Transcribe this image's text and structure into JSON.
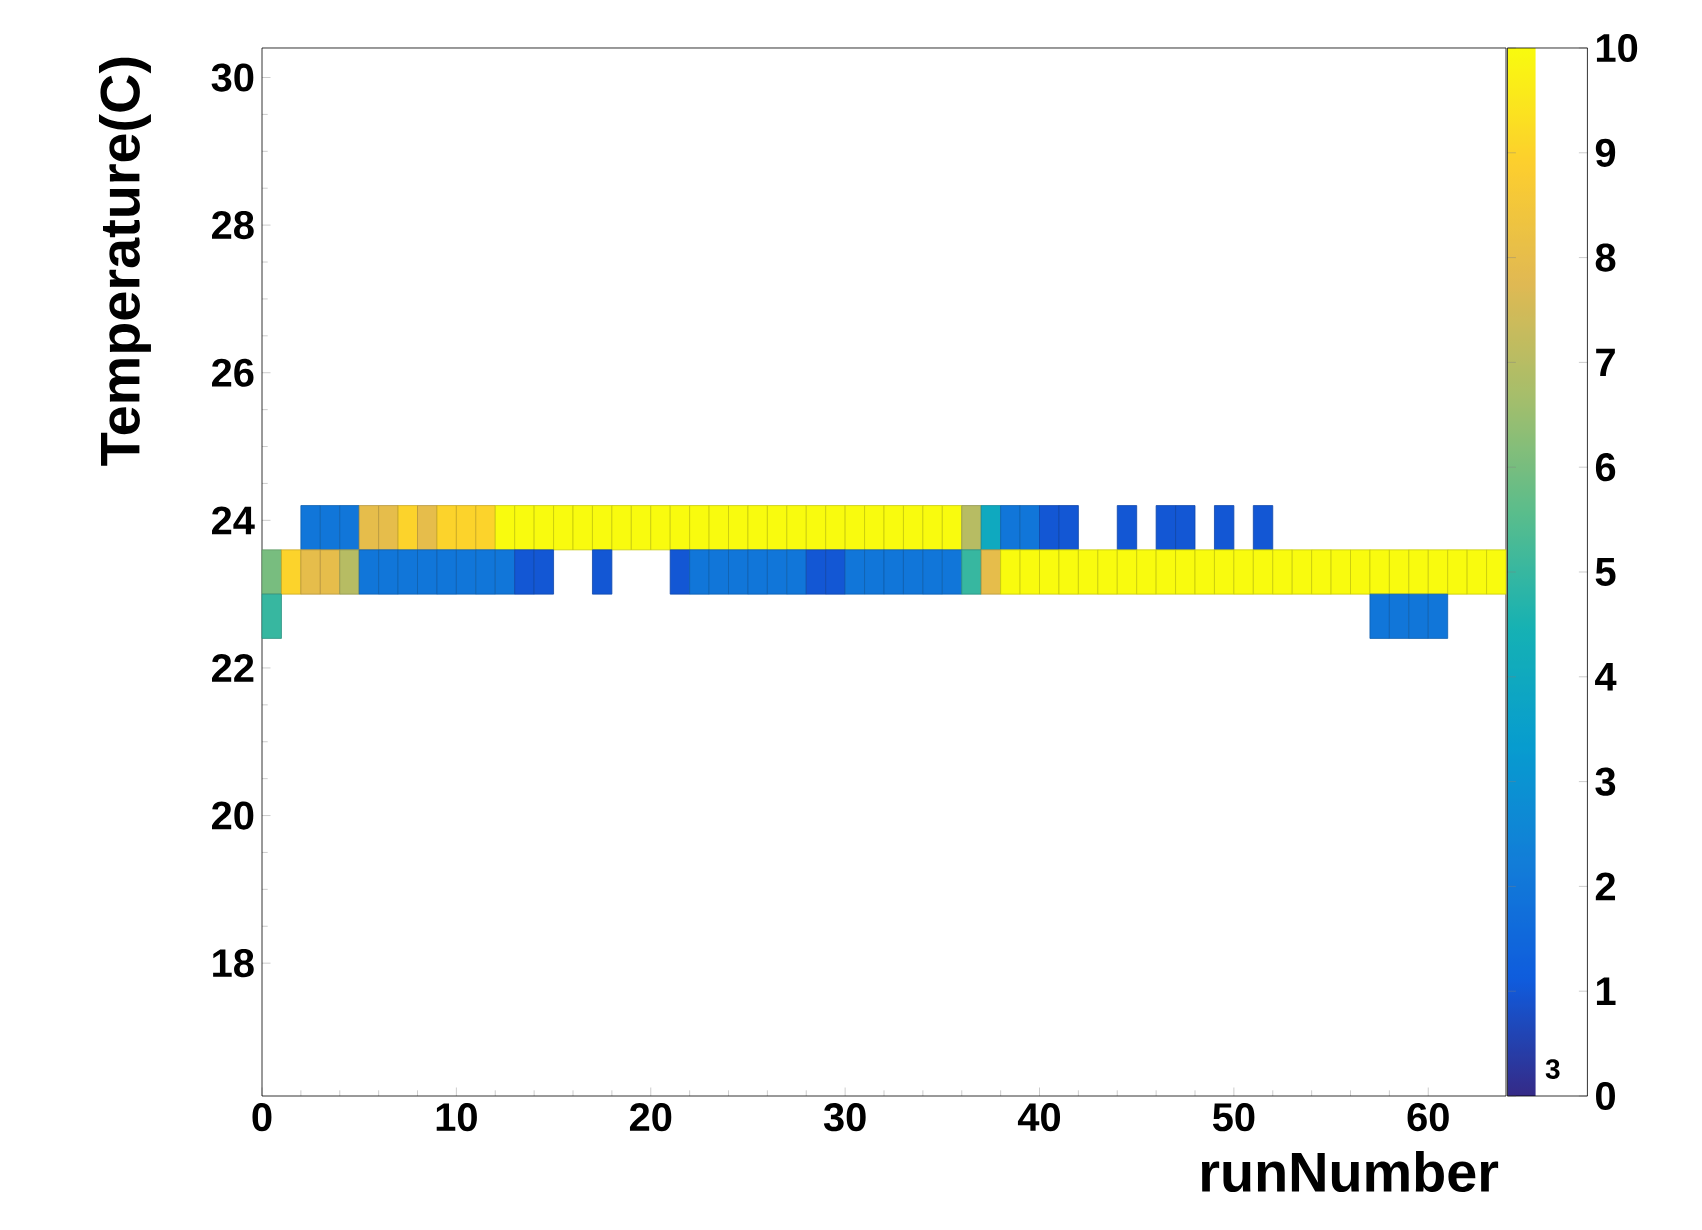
{
  "chart_data": {
    "type": "scatter",
    "xlabel": "runNumber",
    "ylabel": "Temperature(C)",
    "marker": "square",
    "annotations": [
      "3"
    ],
    "xlim": [
      0,
      64
    ],
    "xticks": [
      0,
      10,
      20,
      30,
      40,
      50,
      60
    ],
    "ylim": [
      16.2,
      30.4
    ],
    "yticks": [
      18,
      20,
      22,
      24,
      26,
      28,
      30
    ],
    "clim": [
      0,
      10
    ],
    "cticks": [
      0,
      1,
      2,
      3,
      4,
      5,
      6,
      7,
      8,
      9,
      10
    ],
    "x": [
      2.5,
      3.5,
      4.5,
      5.5,
      6.5,
      7.5,
      8.5,
      9.5,
      10.5,
      11.5,
      12.5,
      13.5,
      14.5,
      15.5,
      16.5,
      17.5,
      18.5,
      19.5,
      20.5,
      21.5,
      22.5,
      23.5,
      24.5,
      25.5,
      26.5,
      27.5,
      28.5,
      29.5,
      30.5,
      31.5,
      32.5,
      33.5,
      34.5,
      35.5,
      36.5,
      37.5,
      38.5,
      39.5,
      40.5,
      41.5,
      44.5,
      46.5,
      47.5,
      49.5,
      51.5,
      0.5,
      1.5,
      2.5,
      3.5,
      4.5,
      5.5,
      6.5,
      7.5,
      8.5,
      9.5,
      10.5,
      11.5,
      12.5,
      13.5,
      14.5,
      17.5,
      21.5,
      22.5,
      23.5,
      24.5,
      25.5,
      26.5,
      27.5,
      28.5,
      29.5,
      30.5,
      31.5,
      32.5,
      33.5,
      34.5,
      35.5,
      36.5,
      37.5,
      38.5,
      39.5,
      40.5,
      41.5,
      42.5,
      43.5,
      44.5,
      45.5,
      46.5,
      47.5,
      48.5,
      49.5,
      50.5,
      51.5,
      52.5,
      53.5,
      54.5,
      55.5,
      56.5,
      57.5,
      58.5,
      59.5,
      60.5,
      61.5,
      62.5,
      63.5,
      0.5,
      57.5,
      58.5,
      59.5,
      60.5
    ],
    "values": [
      23.9,
      23.9,
      23.9,
      23.9,
      23.9,
      23.9,
      23.9,
      23.9,
      23.9,
      23.9,
      23.9,
      23.9,
      23.9,
      23.9,
      23.9,
      23.9,
      23.9,
      23.9,
      23.9,
      23.9,
      23.9,
      23.9,
      23.9,
      23.9,
      23.9,
      23.9,
      23.9,
      23.9,
      23.9,
      23.9,
      23.9,
      23.9,
      23.9,
      23.9,
      23.9,
      23.9,
      23.9,
      23.9,
      23.9,
      23.9,
      23.9,
      23.9,
      23.9,
      23.9,
      23.9,
      23.3,
      23.3,
      23.3,
      23.3,
      23.3,
      23.3,
      23.3,
      23.3,
      23.3,
      23.3,
      23.3,
      23.3,
      23.3,
      23.3,
      23.3,
      23.3,
      23.3,
      23.3,
      23.3,
      23.3,
      23.3,
      23.3,
      23.3,
      23.3,
      23.3,
      23.3,
      23.3,
      23.3,
      23.3,
      23.3,
      23.3,
      23.3,
      23.3,
      23.3,
      23.3,
      23.3,
      23.3,
      23.3,
      23.3,
      23.3,
      23.3,
      23.3,
      23.3,
      23.3,
      23.3,
      23.3,
      23.3,
      23.3,
      23.3,
      23.3,
      23.3,
      23.3,
      23.3,
      23.3,
      23.3,
      23.3,
      23.3,
      23.3,
      23.3,
      22.7,
      22.7,
      22.7,
      22.7,
      22.7
    ],
    "cvalues": [
      2,
      2,
      2,
      8,
      8,
      9,
      8,
      9,
      9,
      9,
      10,
      10,
      10,
      10,
      10,
      10,
      10,
      10,
      10,
      10,
      10,
      10,
      10,
      10,
      10,
      10,
      10,
      10,
      10,
      10,
      10,
      10,
      10,
      10,
      7,
      4,
      2,
      2,
      1,
      1,
      1,
      1,
      1,
      1,
      1,
      6,
      9,
      8,
      8,
      7,
      2,
      2,
      2,
      2,
      2,
      2,
      2,
      2,
      1,
      1,
      1,
      1,
      2,
      2,
      2,
      2,
      2,
      2,
      1,
      1,
      2,
      2,
      2,
      2,
      2,
      2,
      5,
      8,
      10,
      10,
      10,
      10,
      10,
      10,
      10,
      10,
      10,
      10,
      10,
      10,
      10,
      10,
      10,
      10,
      10,
      10,
      10,
      10,
      10,
      10,
      10,
      10,
      10,
      10,
      5,
      2,
      2,
      2,
      2
    ]
  }
}
